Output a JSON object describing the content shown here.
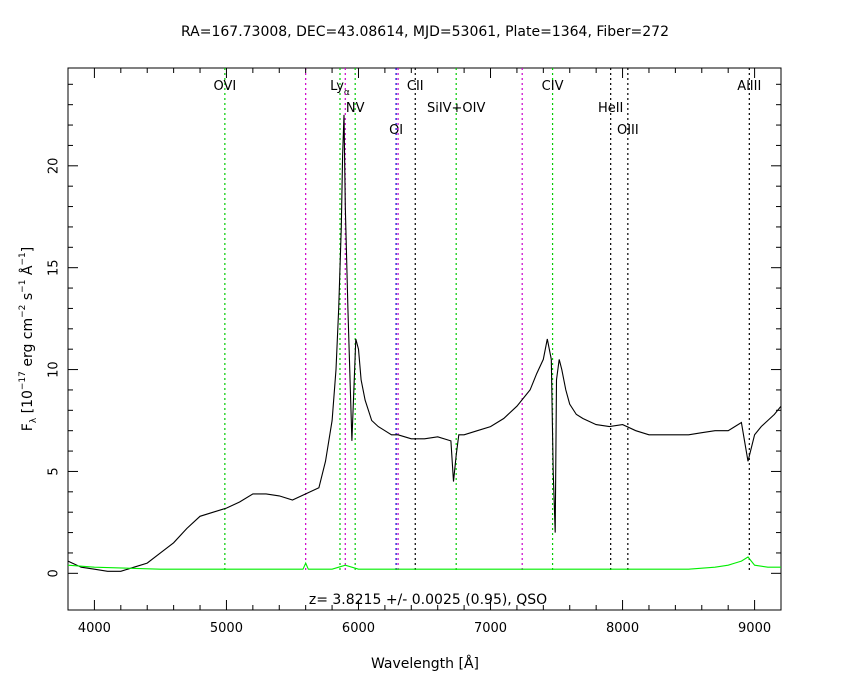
{
  "chart_data": {
    "type": "line",
    "title": "RA=167.73008, DEC=43.08614, MJD=53061, Plate=1364, Fiber=272",
    "xlabel_main": "Wavelength [",
    "xlabel_unit": "Å",
    "xlabel_end": "]",
    "ylabel_parts": {
      "f": "F",
      "lambda": "λ",
      "open": " [10",
      "exp17": "−17",
      "erg": " erg cm",
      "expm2": "−2",
      "s": " s",
      "expm1a": "−1",
      "ang": " Å",
      "expm1b": "−1",
      "close": "]"
    },
    "annotation": "z= 3.8215 +/- 0.0025 (0.95), QSO",
    "xlim": [
      3800,
      9200
    ],
    "ylim": [
      -1.8,
      24.8
    ],
    "xticks": [
      "4000",
      "5000",
      "6000",
      "7000",
      "8000",
      "9000"
    ],
    "yticks": [
      "0",
      "5",
      "10",
      "15",
      "20"
    ],
    "grid": false,
    "colors": {
      "spectrum": "#000000",
      "error": "#00ee00",
      "green_line": "#00cc00",
      "magenta_line": "#cc00cc",
      "black_line": "#000000",
      "blue_line": "#0000cc"
    },
    "emission_lines": [
      {
        "label": "OVI",
        "wavelength": 4988,
        "color": "green"
      },
      {
        "label": "",
        "wavelength": 5600,
        "color": "magenta"
      },
      {
        "label": "Ly",
        "label_sub": "α",
        "wavelength": 5860,
        "color": "green"
      },
      {
        "label": "",
        "wavelength": 5900,
        "color": "magenta"
      },
      {
        "label": "NV",
        "wavelength": 5975,
        "color": "green"
      },
      {
        "label": "OI",
        "wavelength": 6285,
        "color": "blue"
      },
      {
        "label": "",
        "wavelength": 6300,
        "color": "magenta"
      },
      {
        "label": "CII",
        "wavelength": 6430,
        "color": "black"
      },
      {
        "label": "SiIV+OIV",
        "wavelength": 6740,
        "color": "green"
      },
      {
        "label": "",
        "wavelength": 7240,
        "color": "magenta"
      },
      {
        "label": "CIV",
        "wavelength": 7470,
        "color": "green"
      },
      {
        "label": "HeII",
        "wavelength": 7910,
        "color": "black"
      },
      {
        "label": "OIII",
        "wavelength": 8040,
        "color": "black"
      },
      {
        "label": "AlIII",
        "wavelength": 8960,
        "color": "black"
      }
    ],
    "series": [
      {
        "x": [
          3800,
          3900,
          4000,
          4100,
          4200,
          4300,
          4400,
          4500,
          4600,
          4700,
          4800,
          4900,
          5000,
          5100,
          5200,
          5300,
          5400,
          5500,
          5600,
          5700,
          5750,
          5800,
          5830,
          5850,
          5870,
          5880,
          5890,
          5900,
          5920,
          5950,
          5980,
          6000,
          6020,
          6050,
          6100,
          6150,
          6200,
          6250,
          6300,
          6350,
          6400,
          6500,
          6600,
          6700,
          6720,
          6740,
          6760,
          6800,
          6900,
          7000,
          7100,
          7200,
          7300,
          7350,
          7400,
          7430,
          7460,
          7475,
          7490,
          7500,
          7520,
          7540,
          7570,
          7600,
          7650,
          7700,
          7800,
          7900,
          8000,
          8100,
          8200,
          8300,
          8400,
          8500,
          8600,
          8700,
          8800,
          8850,
          8900,
          8950,
          9000,
          9050,
          9100,
          9150,
          9200
        ],
        "y": [
          0.6,
          0.3,
          0.2,
          0.1,
          0.1,
          0.3,
          0.5,
          1.0,
          1.5,
          2.2,
          2.8,
          3.0,
          3.2,
          3.5,
          3.9,
          3.9,
          3.8,
          3.6,
          3.9,
          4.2,
          5.5,
          7.5,
          10.0,
          13.0,
          17.0,
          20.5,
          22.5,
          18.0,
          13.0,
          6.5,
          11.5,
          11.0,
          9.5,
          8.5,
          7.5,
          7.2,
          7.0,
          6.8,
          6.8,
          6.7,
          6.6,
          6.6,
          6.7,
          6.5,
          4.5,
          5.8,
          6.8,
          6.8,
          7.0,
          7.2,
          7.6,
          8.2,
          9.0,
          9.8,
          10.5,
          11.5,
          10.5,
          5.0,
          2.0,
          9.5,
          10.5,
          10.0,
          9.0,
          8.3,
          7.8,
          7.6,
          7.3,
          7.2,
          7.3,
          7.0,
          6.8,
          6.8,
          6.8,
          6.8,
          6.9,
          7.0,
          7.0,
          7.2,
          7.4,
          5.5,
          6.8,
          7.2,
          7.5,
          7.8,
          8.2
        ]
      },
      {
        "x": [
          3800,
          4000,
          4500,
          5000,
          5500,
          5580,
          5600,
          5620,
          5700,
          5800,
          5850,
          5900,
          6000,
          6500,
          7000,
          7500,
          8000,
          8500,
          8700,
          8800,
          8850,
          8900,
          8950,
          9000,
          9100,
          9200
        ],
        "y": [
          0.4,
          0.3,
          0.2,
          0.2,
          0.2,
          0.2,
          0.5,
          0.2,
          0.2,
          0.2,
          0.3,
          0.4,
          0.2,
          0.2,
          0.2,
          0.2,
          0.2,
          0.2,
          0.3,
          0.4,
          0.5,
          0.6,
          0.8,
          0.4,
          0.3,
          0.3
        ]
      }
    ]
  }
}
